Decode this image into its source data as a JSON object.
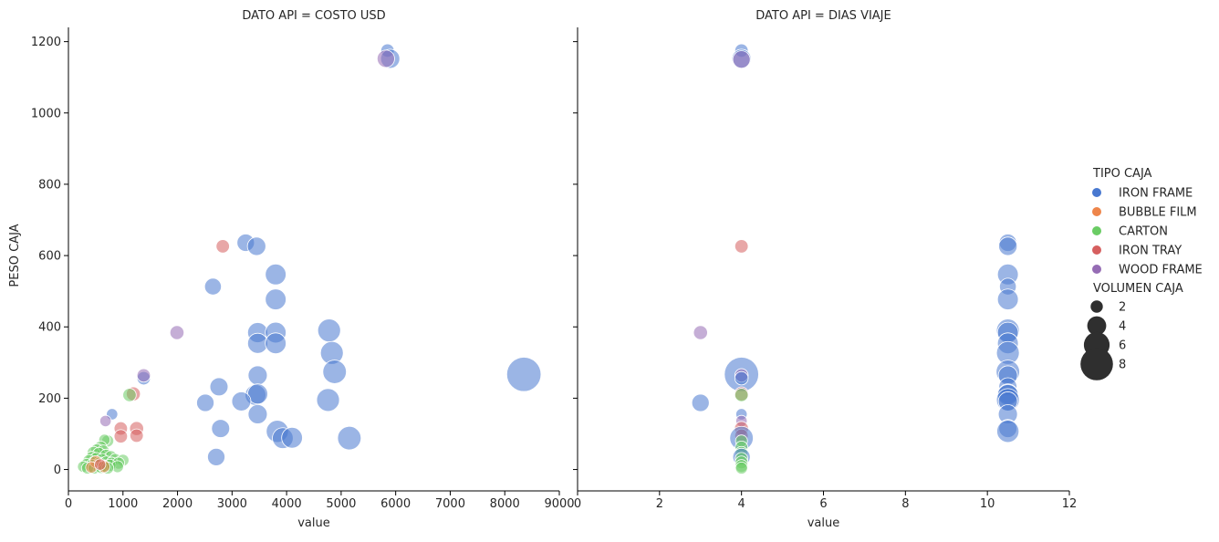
{
  "colors": {
    "IRON FRAME": "#4878d0",
    "BUBBLE FILM": "#ee854a",
    "CARTON": "#6acc64",
    "IRON TRAY": "#d65f5f",
    "WOOD FRAME": "#956cb4"
  },
  "chart_data": {
    "type": "scatter",
    "ylabel": "PESO CAJA",
    "ylim": [
      -60,
      1240
    ],
    "yticks": [
      0,
      200,
      400,
      600,
      800,
      1000,
      1200
    ],
    "legend": {
      "position": "right",
      "hue_title": "TIPO CAJA",
      "hue_entries": [
        "IRON FRAME",
        "BUBBLE FILM",
        "CARTON",
        "IRON TRAY",
        "WOOD FRAME"
      ],
      "size_title": "VOLUMEN CAJA",
      "size_entries": [
        2,
        4,
        6,
        8
      ]
    },
    "panels": [
      {
        "title": "DATO API = COSTO USD",
        "xlabel": "value",
        "xlim": [
          0,
          9000
        ],
        "xticks": [
          0,
          1000,
          2000,
          3000,
          4000,
          5000,
          6000,
          7000,
          8000,
          9000
        ],
        "points": [
          {
            "x": 5850,
            "y": 1175,
            "size": 1.8,
            "type": "IRON FRAME"
          },
          {
            "x": 5900,
            "y": 1152,
            "size": 3.5,
            "type": "IRON FRAME"
          },
          {
            "x": 5820,
            "y": 1152,
            "size": 3,
            "type": "WOOD FRAME"
          },
          {
            "x": 3250,
            "y": 636,
            "size": 3,
            "type": "IRON FRAME"
          },
          {
            "x": 3450,
            "y": 626,
            "size": 3.3,
            "type": "IRON FRAME"
          },
          {
            "x": 2830,
            "y": 626,
            "size": 1.8,
            "type": "IRON TRAY"
          },
          {
            "x": 2650,
            "y": 513,
            "size": 2.8,
            "type": "IRON FRAME"
          },
          {
            "x": 3800,
            "y": 547,
            "size": 4,
            "type": "IRON FRAME"
          },
          {
            "x": 3800,
            "y": 477,
            "size": 4,
            "type": "IRON FRAME"
          },
          {
            "x": 4780,
            "y": 390,
            "size": 4.6,
            "type": "IRON FRAME"
          },
          {
            "x": 3470,
            "y": 384,
            "size": 3.8,
            "type": "IRON FRAME"
          },
          {
            "x": 3800,
            "y": 384,
            "size": 4,
            "type": "IRON FRAME"
          },
          {
            "x": 1990,
            "y": 384,
            "size": 2,
            "type": "WOOD FRAME"
          },
          {
            "x": 3470,
            "y": 354,
            "size": 3.8,
            "type": "IRON FRAME"
          },
          {
            "x": 3800,
            "y": 354,
            "size": 4,
            "type": "IRON FRAME"
          },
          {
            "x": 4830,
            "y": 327,
            "size": 4.6,
            "type": "IRON FRAME"
          },
          {
            "x": 4880,
            "y": 274,
            "size": 4.8,
            "type": "IRON FRAME"
          },
          {
            "x": 8350,
            "y": 267,
            "size": 8,
            "type": "IRON FRAME"
          },
          {
            "x": 3470,
            "y": 264,
            "size": 3.5,
            "type": "IRON FRAME"
          },
          {
            "x": 1380,
            "y": 256,
            "size": 1.8,
            "type": "IRON FRAME"
          },
          {
            "x": 1380,
            "y": 264,
            "size": 1.8,
            "type": "WOOD FRAME"
          },
          {
            "x": 2760,
            "y": 232,
            "size": 3.2,
            "type": "IRON FRAME"
          },
          {
            "x": 3430,
            "y": 209,
            "size": 4,
            "type": "IRON FRAME"
          },
          {
            "x": 3470,
            "y": 212,
            "size": 3.8,
            "type": "IRON FRAME"
          },
          {
            "x": 3170,
            "y": 191,
            "size": 3.5,
            "type": "IRON FRAME"
          },
          {
            "x": 2510,
            "y": 187,
            "size": 3,
            "type": "IRON FRAME"
          },
          {
            "x": 4760,
            "y": 195,
            "size": 4.6,
            "type": "IRON FRAME"
          },
          {
            "x": 1190,
            "y": 212,
            "size": 2,
            "type": "IRON TRAY"
          },
          {
            "x": 1120,
            "y": 209,
            "size": 1.8,
            "type": "CARTON"
          },
          {
            "x": 3470,
            "y": 155,
            "size": 3.5,
            "type": "IRON FRAME"
          },
          {
            "x": 800,
            "y": 155,
            "size": 1.2,
            "type": "IRON FRAME"
          },
          {
            "x": 680,
            "y": 136,
            "size": 1.2,
            "type": "WOOD FRAME"
          },
          {
            "x": 2790,
            "y": 115,
            "size": 3.2,
            "type": "IRON FRAME"
          },
          {
            "x": 3830,
            "y": 107,
            "size": 4.4,
            "type": "IRON FRAME"
          },
          {
            "x": 3930,
            "y": 88,
            "size": 4,
            "type": "IRON FRAME"
          },
          {
            "x": 4100,
            "y": 89,
            "size": 4,
            "type": "IRON FRAME"
          },
          {
            "x": 5150,
            "y": 88,
            "size": 4.8,
            "type": "IRON FRAME"
          },
          {
            "x": 2710,
            "y": 35,
            "size": 3,
            "type": "IRON FRAME"
          },
          {
            "x": 1250,
            "y": 115,
            "size": 2,
            "type": "IRON TRAY"
          },
          {
            "x": 1250,
            "y": 95,
            "size": 1.8,
            "type": "IRON TRAY"
          },
          {
            "x": 960,
            "y": 115,
            "size": 1.8,
            "type": "IRON TRAY"
          },
          {
            "x": 960,
            "y": 93,
            "size": 1.8,
            "type": "IRON TRAY"
          },
          {
            "x": 720,
            "y": 80,
            "size": 1.4,
            "type": "CARTON"
          },
          {
            "x": 660,
            "y": 83,
            "size": 1.2,
            "type": "CARTON"
          },
          {
            "x": 590,
            "y": 62,
            "size": 1.6,
            "type": "CARTON"
          },
          {
            "x": 520,
            "y": 55,
            "size": 1.4,
            "type": "CARTON"
          },
          {
            "x": 640,
            "y": 52,
            "size": 1.4,
            "type": "CARTON"
          },
          {
            "x": 460,
            "y": 47,
            "size": 1.6,
            "type": "CARTON"
          },
          {
            "x": 560,
            "y": 44,
            "size": 1.6,
            "type": "CARTON"
          },
          {
            "x": 690,
            "y": 40,
            "size": 1.4,
            "type": "CARTON"
          },
          {
            "x": 780,
            "y": 36,
            "size": 1.4,
            "type": "CARTON"
          },
          {
            "x": 430,
            "y": 34,
            "size": 1.4,
            "type": "CARTON"
          },
          {
            "x": 510,
            "y": 30,
            "size": 1.6,
            "type": "CARTON"
          },
          {
            "x": 620,
            "y": 28,
            "size": 1.4,
            "type": "CARTON"
          },
          {
            "x": 860,
            "y": 28,
            "size": 1.4,
            "type": "CARTON"
          },
          {
            "x": 1000,
            "y": 26,
            "size": 1.4,
            "type": "CARTON"
          },
          {
            "x": 380,
            "y": 24,
            "size": 1.6,
            "type": "CARTON"
          },
          {
            "x": 470,
            "y": 20,
            "size": 1.4,
            "type": "CARTON"
          },
          {
            "x": 570,
            "y": 18,
            "size": 1.4,
            "type": "CARTON"
          },
          {
            "x": 700,
            "y": 20,
            "size": 1.6,
            "type": "CARTON"
          },
          {
            "x": 790,
            "y": 18,
            "size": 1.4,
            "type": "CARTON"
          },
          {
            "x": 920,
            "y": 18,
            "size": 1.4,
            "type": "CARTON"
          },
          {
            "x": 330,
            "y": 14,
            "size": 1.4,
            "type": "CARTON"
          },
          {
            "x": 430,
            "y": 12,
            "size": 1.4,
            "type": "CARTON"
          },
          {
            "x": 540,
            "y": 10,
            "size": 1.6,
            "type": "CARTON"
          },
          {
            "x": 650,
            "y": 10,
            "size": 1.4,
            "type": "CARTON"
          },
          {
            "x": 760,
            "y": 12,
            "size": 1.4,
            "type": "CARTON"
          },
          {
            "x": 900,
            "y": 8,
            "size": 1.4,
            "type": "CARTON"
          },
          {
            "x": 270,
            "y": 8,
            "size": 1.2,
            "type": "CARTON"
          },
          {
            "x": 350,
            "y": 4,
            "size": 1.4,
            "type": "CARTON"
          },
          {
            "x": 470,
            "y": 4,
            "size": 1.4,
            "type": "CARTON"
          },
          {
            "x": 600,
            "y": 6,
            "size": 1.4,
            "type": "CARTON"
          },
          {
            "x": 720,
            "y": 4,
            "size": 1.4,
            "type": "CARTON"
          },
          {
            "x": 500,
            "y": 22,
            "size": 1.4,
            "type": "BUBBLE FILM"
          },
          {
            "x": 650,
            "y": 8,
            "size": 1.4,
            "type": "BUBBLE FILM"
          },
          {
            "x": 420,
            "y": 6,
            "size": 1.2,
            "type": "BUBBLE FILM"
          },
          {
            "x": 580,
            "y": 14,
            "size": 1.2,
            "type": "IRON TRAY"
          }
        ]
      },
      {
        "title": "DATO API = DIAS VIAJE",
        "xlabel": "value",
        "xlim": [
          0,
          12
        ],
        "xticks": [
          0,
          2,
          4,
          6,
          8,
          10,
          12
        ],
        "points": [
          {
            "x": 4,
            "y": 1175,
            "size": 1.8,
            "type": "IRON FRAME"
          },
          {
            "x": 4,
            "y": 1152,
            "size": 3.5,
            "type": "IRON FRAME"
          },
          {
            "x": 4,
            "y": 1150,
            "size": 3,
            "type": "WOOD FRAME"
          },
          {
            "x": 4,
            "y": 626,
            "size": 1.8,
            "type": "IRON TRAY"
          },
          {
            "x": 3,
            "y": 384,
            "size": 2,
            "type": "WOOD FRAME"
          },
          {
            "x": 4,
            "y": 267,
            "size": 8,
            "type": "IRON FRAME"
          },
          {
            "x": 4,
            "y": 264,
            "size": 1.8,
            "type": "WOOD FRAME"
          },
          {
            "x": 4,
            "y": 256,
            "size": 1.8,
            "type": "IRON FRAME"
          },
          {
            "x": 4,
            "y": 212,
            "size": 2,
            "type": "IRON TRAY"
          },
          {
            "x": 4,
            "y": 209,
            "size": 1.8,
            "type": "CARTON"
          },
          {
            "x": 3,
            "y": 187,
            "size": 3,
            "type": "IRON FRAME"
          },
          {
            "x": 4,
            "y": 155,
            "size": 1.2,
            "type": "IRON FRAME"
          },
          {
            "x": 4,
            "y": 136,
            "size": 1.2,
            "type": "WOOD FRAME"
          },
          {
            "x": 4,
            "y": 115,
            "size": 2,
            "type": "IRON TRAY"
          },
          {
            "x": 4,
            "y": 95,
            "size": 1.8,
            "type": "IRON TRAY"
          },
          {
            "x": 4,
            "y": 88,
            "size": 4.8,
            "type": "IRON FRAME"
          },
          {
            "x": 4,
            "y": 80,
            "size": 1.4,
            "type": "CARTON"
          },
          {
            "x": 4,
            "y": 62,
            "size": 1.6,
            "type": "CARTON"
          },
          {
            "x": 4,
            "y": 47,
            "size": 1.6,
            "type": "CARTON"
          },
          {
            "x": 4,
            "y": 35,
            "size": 3,
            "type": "IRON FRAME"
          },
          {
            "x": 4,
            "y": 30,
            "size": 1.6,
            "type": "CARTON"
          },
          {
            "x": 4,
            "y": 20,
            "size": 1.6,
            "type": "CARTON"
          },
          {
            "x": 4,
            "y": 10,
            "size": 1.6,
            "type": "CARTON"
          },
          {
            "x": 4,
            "y": 4,
            "size": 1.4,
            "type": "CARTON"
          },
          {
            "x": 10.5,
            "y": 636,
            "size": 3,
            "type": "IRON FRAME"
          },
          {
            "x": 10.5,
            "y": 626,
            "size": 3.3,
            "type": "IRON FRAME"
          },
          {
            "x": 10.5,
            "y": 547,
            "size": 4,
            "type": "IRON FRAME"
          },
          {
            "x": 10.5,
            "y": 513,
            "size": 2.8,
            "type": "IRON FRAME"
          },
          {
            "x": 10.5,
            "y": 477,
            "size": 4,
            "type": "IRON FRAME"
          },
          {
            "x": 10.5,
            "y": 390,
            "size": 4.6,
            "type": "IRON FRAME"
          },
          {
            "x": 10.5,
            "y": 384,
            "size": 4,
            "type": "IRON FRAME"
          },
          {
            "x": 10.5,
            "y": 354,
            "size": 4,
            "type": "IRON FRAME"
          },
          {
            "x": 10.5,
            "y": 327,
            "size": 4.6,
            "type": "IRON FRAME"
          },
          {
            "x": 10.5,
            "y": 274,
            "size": 4.8,
            "type": "IRON FRAME"
          },
          {
            "x": 10.5,
            "y": 264,
            "size": 3.5,
            "type": "IRON FRAME"
          },
          {
            "x": 10.5,
            "y": 232,
            "size": 3.2,
            "type": "IRON FRAME"
          },
          {
            "x": 10.5,
            "y": 212,
            "size": 3.8,
            "type": "IRON FRAME"
          },
          {
            "x": 10.5,
            "y": 209,
            "size": 4,
            "type": "IRON FRAME"
          },
          {
            "x": 10.5,
            "y": 195,
            "size": 4.6,
            "type": "IRON FRAME"
          },
          {
            "x": 10.5,
            "y": 191,
            "size": 3.5,
            "type": "IRON FRAME"
          },
          {
            "x": 10.5,
            "y": 155,
            "size": 3.5,
            "type": "IRON FRAME"
          },
          {
            "x": 10.5,
            "y": 115,
            "size": 3.2,
            "type": "IRON FRAME"
          },
          {
            "x": 10.5,
            "y": 107,
            "size": 4.4,
            "type": "IRON FRAME"
          }
        ]
      }
    ]
  }
}
